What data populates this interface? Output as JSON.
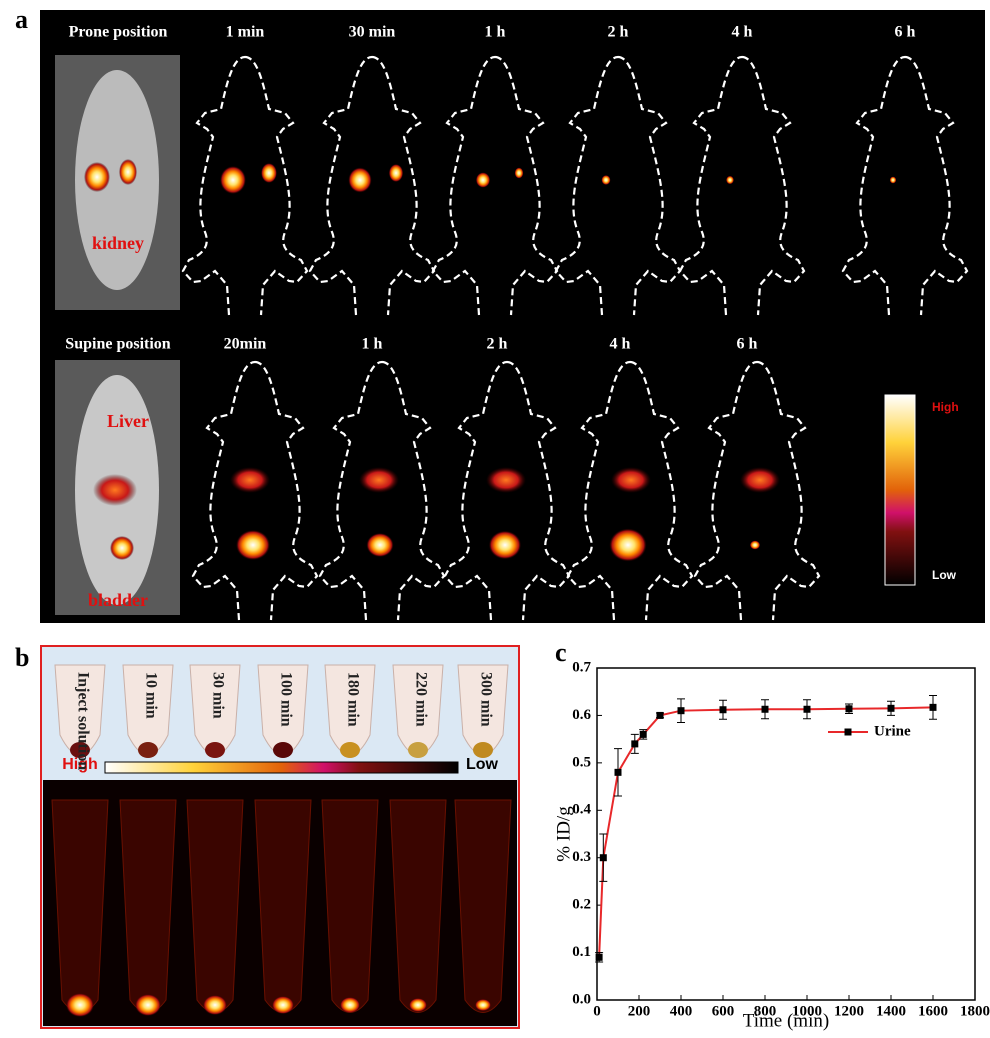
{
  "panel_a": {
    "label": "a",
    "prone": {
      "title": "Prone position",
      "times": [
        "1 min",
        "30 min",
        "1 h",
        "2 h",
        "4 h",
        "6 h"
      ],
      "annotation": "kidney"
    },
    "supine": {
      "title": "Supine position",
      "times": [
        "20min",
        "1 h",
        "2 h",
        "4 h",
        "6 h"
      ],
      "annotations": [
        "Liver",
        "bladder"
      ]
    },
    "scale": {
      "high": "High",
      "low": "Low"
    }
  },
  "panel_b": {
    "label": "b",
    "tubes": [
      "Inject solution",
      "10 min",
      "30 min",
      "100 min",
      "180 min",
      "220 min",
      "300 min"
    ],
    "scale": {
      "high": "High",
      "low": "Low"
    }
  },
  "chart_data": {
    "type": "line",
    "panel_label": "c",
    "xlabel": "Time (min)",
    "ylabel": "% ID/g",
    "x": [
      10,
      30,
      100,
      180,
      220,
      300,
      400,
      600,
      800,
      1000,
      1200,
      1400,
      1600
    ],
    "series": [
      {
        "name": "Urine",
        "color": "#e8282a",
        "values": [
          0.09,
          0.3,
          0.48,
          0.54,
          0.56,
          0.6,
          0.61,
          0.612,
          0.613,
          0.613,
          0.614,
          0.615,
          0.617
        ],
        "errors": [
          0.01,
          0.05,
          0.05,
          0.02,
          0.01,
          0.005,
          0.025,
          0.02,
          0.02,
          0.02,
          0.01,
          0.015,
          0.025
        ]
      }
    ],
    "xlim": [
      0,
      1800
    ],
    "xticks": [
      0,
      200,
      400,
      600,
      800,
      1000,
      1200,
      1400,
      1600,
      1800
    ],
    "ylim": [
      0,
      0.7
    ],
    "yticks": [
      {
        "value": 0,
        "label": "0.0"
      },
      0.1,
      0.2,
      0.3,
      0.4,
      0.5,
      0.6,
      0.7
    ],
    "legend": "right"
  }
}
